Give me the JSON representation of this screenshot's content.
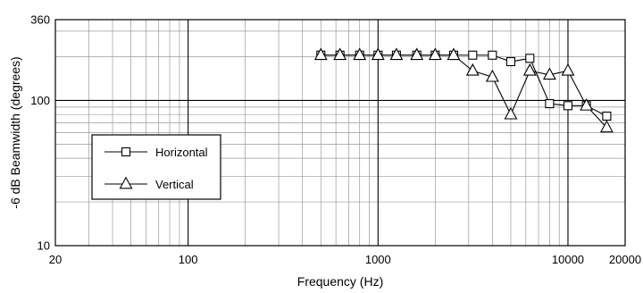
{
  "chart_data": {
    "type": "line",
    "title": "",
    "xlabel": "Frequency (Hz)",
    "ylabel": "-6 dB Beamwidth (degrees)",
    "xscale": "log",
    "yscale": "log",
    "xlim": [
      20,
      20000
    ],
    "ylim": [
      10,
      360
    ],
    "xticks": [
      20,
      100,
      1000,
      10000,
      20000
    ],
    "xtick_labels": [
      "20",
      "100",
      "1000",
      "10000",
      "20000"
    ],
    "yticks": [
      10,
      100,
      360
    ],
    "ytick_labels": [
      "10",
      "100",
      "360"
    ],
    "grid": true,
    "legend_position": "left",
    "series": [
      {
        "name": "Horizontal",
        "marker": "square",
        "x": [
          500,
          630,
          800,
          1000,
          1250,
          1600,
          2000,
          2500,
          3150,
          4000,
          5000,
          6300,
          8000,
          10000,
          12500,
          16000
        ],
        "y": [
          205,
          205,
          205,
          205,
          205,
          205,
          205,
          205,
          205,
          205,
          185,
          195,
          95,
          92,
          92,
          78
        ]
      },
      {
        "name": "Vertical",
        "marker": "triangle",
        "x": [
          500,
          630,
          800,
          1000,
          1250,
          1600,
          2000,
          2500,
          3150,
          4000,
          5000,
          6300,
          8000,
          10000,
          12500,
          16000
        ],
        "y": [
          205,
          205,
          205,
          205,
          205,
          205,
          205,
          205,
          160,
          145,
          80,
          160,
          150,
          160,
          92,
          65
        ]
      }
    ]
  }
}
